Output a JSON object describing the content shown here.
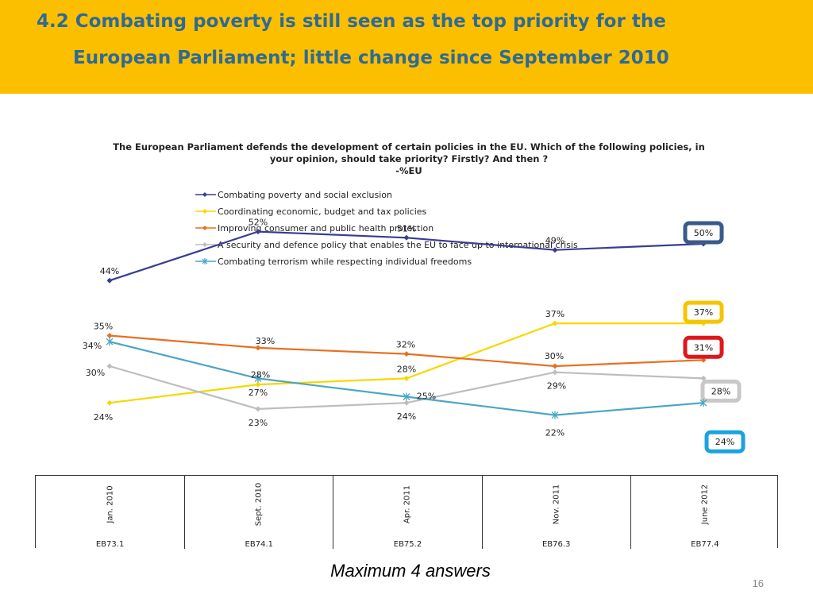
{
  "header": {
    "title_line1": "4.2 Combating poverty is still seen as the top priority for the",
    "title_line2": "European Parliament; little change since September 2010",
    "background_color": "#fcbf00",
    "text_color": "#2f6a94"
  },
  "chart_data": {
    "type": "line",
    "title": "The European Parliament defends the development of certain policies in the EU. Which of the following policies, in your opinion, should take priority? Firstly? And then ?",
    "subtitle": "-%EU",
    "categories": [
      "Jan. 2010",
      "Sept. 2010",
      "Apr. 2011",
      "Nov. 2011",
      "June 2012"
    ],
    "waves": [
      "EB73.1",
      "EB74.1",
      "EB75.2",
      "EB76.3",
      "EB77.4"
    ],
    "value_labels": [
      "44%",
      "52%",
      "51%",
      "49%",
      "50%",
      "24%",
      "27%",
      "28%",
      "37%",
      "37%",
      "35%",
      "33%",
      "32%",
      "30%",
      "31%",
      "30%",
      "23%",
      "24%",
      "29%",
      "28%",
      "34%",
      "28%",
      "25%",
      "22%",
      "24%"
    ],
    "ylim": [
      10,
      60
    ],
    "legend_position": "top-left",
    "grid": false,
    "series": [
      {
        "name": "Combating poverty and social exclusion",
        "values": [
          44,
          52,
          51,
          49,
          50
        ],
        "color": "#3a3d91",
        "marker": "diamond",
        "highlight_color": "#3a5a8a"
      },
      {
        "name": "Coordinating economic, budget and tax policies",
        "values": [
          24,
          27,
          28,
          37,
          37
        ],
        "color": "#f5d800",
        "marker": "diamond",
        "highlight_color": "#f5c400"
      },
      {
        "name": "Improving consumer and public health protection",
        "values": [
          35,
          33,
          32,
          30,
          31
        ],
        "color": "#e8701f",
        "marker": "diamond",
        "highlight_color": "#e0161b"
      },
      {
        "name": "A security and defence policy that enables the EU to face up to international crisis",
        "values": [
          30,
          23,
          24,
          29,
          28
        ],
        "color": "#bdbdbd",
        "marker": "diamond",
        "highlight_color": "#c8c8c8"
      },
      {
        "name": "Combating terrorism while respecting individual freedoms",
        "values": [
          34,
          28,
          25,
          22,
          24
        ],
        "color": "#4aa6c4",
        "marker": "asterisk",
        "highlight_color": "#1aa3e0"
      }
    ]
  },
  "footnote": "Maximum 4 answers",
  "page_number": "16"
}
